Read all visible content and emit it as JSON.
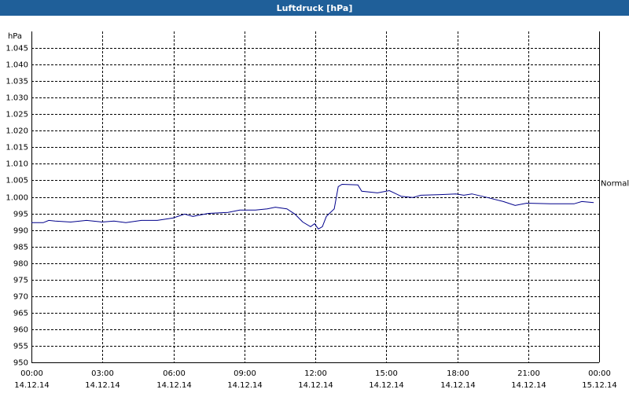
{
  "chart_data": {
    "type": "line",
    "title": "Luftdruck [hPa]",
    "y_unit": "hPa",
    "color": "#00008b",
    "grid": true,
    "x": [
      0,
      0.5,
      0.73,
      1.0,
      1.66,
      2.33,
      2.99,
      3.49,
      3.99,
      4.65,
      5.32,
      5.98,
      6.48,
      6.82,
      7.48,
      8.31,
      8.81,
      9.47,
      9.97,
      10.31,
      10.8,
      11.14,
      11.47,
      11.8,
      11.97,
      12.13,
      12.3,
      12.47,
      12.8,
      12.97,
      13.13,
      13.8,
      13.96,
      14.63,
      15.13,
      15.63,
      16.12,
      16.46,
      17.29,
      17.95,
      18.28,
      18.62,
      19.28,
      19.95,
      20.45,
      20.94,
      21.94,
      22.94,
      23.27,
      23.77
    ],
    "values": [
      992.2,
      992.2,
      992.9,
      992.7,
      992.4,
      992.9,
      992.4,
      992.7,
      992.2,
      992.9,
      992.9,
      993.6,
      994.8,
      994.1,
      995.0,
      995.3,
      996.0,
      996.0,
      996.4,
      996.9,
      996.4,
      994.8,
      992.4,
      991.0,
      991.9,
      990.3,
      991.0,
      994.1,
      996.4,
      1003.1,
      1003.8,
      1003.6,
      1001.7,
      1001.2,
      1001.9,
      1000.2,
      999.8,
      1000.5,
      1000.7,
      1000.9,
      1000.5,
      1000.9,
      999.8,
      998.6,
      997.4,
      998.1,
      997.9,
      997.9,
      998.6,
      998.3
    ],
    "xlim": [
      0,
      24
    ],
    "xticks": [
      {
        "value": 0,
        "label": "00:00"
      },
      {
        "value": 3,
        "label": "03:00"
      },
      {
        "value": 6,
        "label": "06:00"
      },
      {
        "value": 9,
        "label": "09:00"
      },
      {
        "value": 12,
        "label": "12:00"
      },
      {
        "value": 15,
        "label": "15:00"
      },
      {
        "value": 18,
        "label": "18:00"
      },
      {
        "value": 21,
        "label": "21:00"
      },
      {
        "value": 24,
        "label": "00:00"
      }
    ],
    "xtick_dates": [
      "14.12.14",
      "14.12.14",
      "14.12.14",
      "14.12.14",
      "14.12.14",
      "14.12.14",
      "14.12.14",
      "14.12.14",
      "15.12.14"
    ],
    "ylim": [
      950,
      1050
    ],
    "yticks": [
      950,
      955,
      960,
      965,
      970,
      975,
      980,
      985,
      990,
      995,
      {
        "value": 1000,
        "label": "1.000"
      },
      {
        "value": 1005,
        "label": "1.005"
      },
      {
        "value": 1010,
        "label": "1.010"
      },
      {
        "value": 1015,
        "label": "1.015"
      },
      {
        "value": 1020,
        "label": "1.020"
      },
      {
        "value": 1025,
        "label": "1.025"
      },
      {
        "value": 1030,
        "label": "1.030"
      },
      {
        "value": 1035,
        "label": "1.035"
      },
      {
        "value": 1040,
        "label": "1.040"
      },
      {
        "value": 1045,
        "label": "1.045"
      }
    ],
    "annotation": {
      "text": "Normal",
      "y": 1004
    }
  }
}
